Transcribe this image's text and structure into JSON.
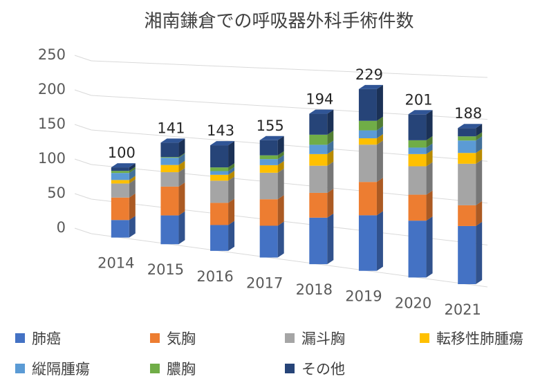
{
  "chart_data": {
    "type": "bar",
    "stacked": true,
    "title": "湘南鎌倉での呼吸器外科手術件数",
    "xlabel": "",
    "ylabel": "",
    "ylim": [
      0,
      250
    ],
    "yticks": [
      "0",
      "50",
      "100",
      "150",
      "200",
      "250"
    ],
    "grid": true,
    "legend_position": "bottom",
    "categories": [
      "2014",
      "2015",
      "2016",
      "2017",
      "2018",
      "2019",
      "2020",
      "2021"
    ],
    "totals": [
      "100",
      "141",
      "143",
      "155",
      "194",
      "229",
      "201",
      "188"
    ],
    "series": [
      {
        "name": "肺癌",
        "color": "#4472C4",
        "values": [
          25,
          40,
          35,
          42,
          60,
          70,
          70,
          70
        ]
      },
      {
        "name": "気胸",
        "color": "#ED7D31",
        "values": [
          32,
          40,
          30,
          35,
          32,
          42,
          32,
          25
        ]
      },
      {
        "name": "漏斗胸",
        "color": "#A5A5A5",
        "values": [
          20,
          20,
          30,
          35,
          35,
          47,
          35,
          50
        ]
      },
      {
        "name": "転移性肺腫瘍",
        "color": "#FFC000",
        "values": [
          5,
          10,
          8,
          10,
          15,
          8,
          15,
          13
        ]
      },
      {
        "name": "縦隔腫瘍",
        "color": "#5B9BD5",
        "values": [
          10,
          10,
          5,
          8,
          12,
          10,
          8,
          15
        ]
      },
      {
        "name": "膿胸",
        "color": "#70AD47",
        "values": [
          3,
          1,
          5,
          5,
          13,
          12,
          9,
          5
        ]
      },
      {
        "name": "その他",
        "color": "#264478",
        "values": [
          5,
          20,
          30,
          20,
          27,
          40,
          32,
          10
        ]
      }
    ]
  }
}
